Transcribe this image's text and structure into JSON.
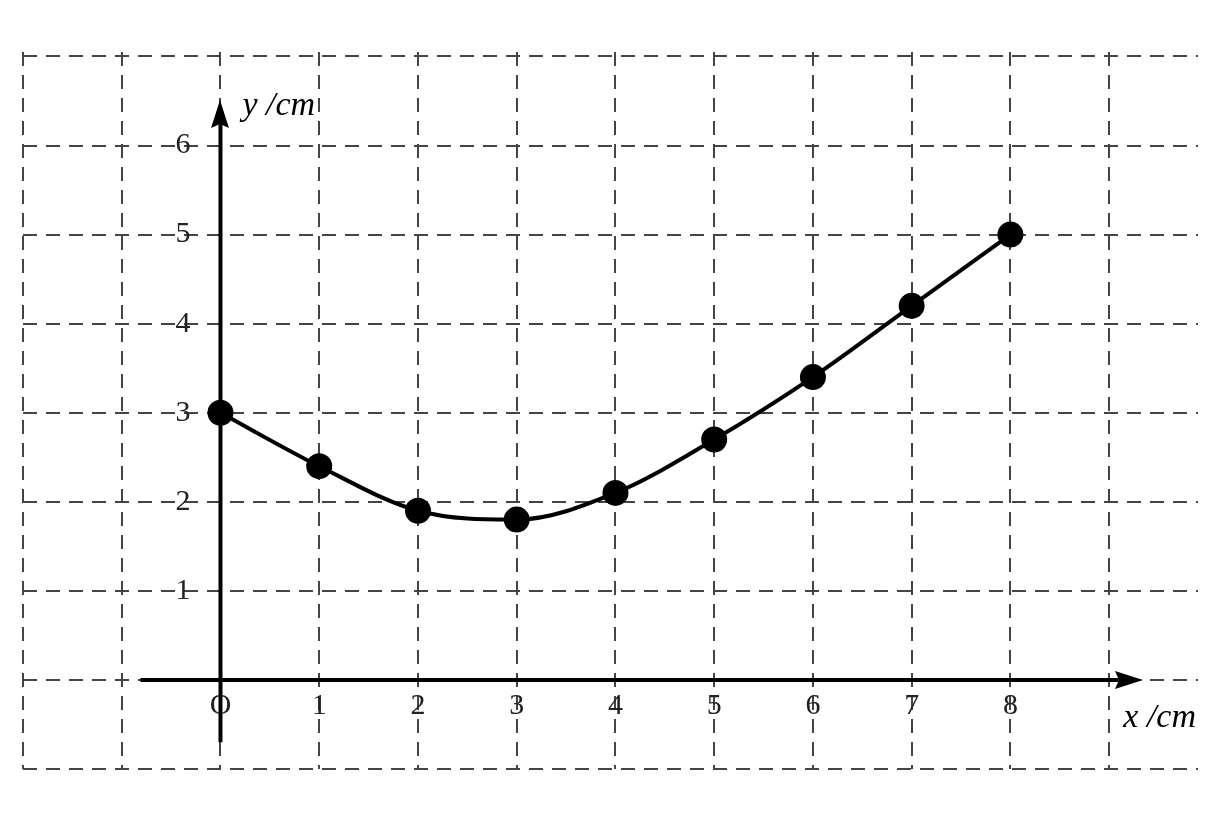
{
  "chart_data": {
    "type": "line",
    "xlabel": "x /cm",
    "ylabel": "y /cm",
    "x": [
      0,
      1,
      2,
      3,
      4,
      5,
      6,
      7,
      8
    ],
    "series": [
      {
        "color": "#000000",
        "values": [
          3.0,
          2.4,
          1.9,
          1.8,
          2.1,
          2.7,
          3.4,
          4.2,
          5.0
        ]
      }
    ],
    "xlim": [
      -2,
      9.9
    ],
    "ylim": [
      -1,
      7.05
    ],
    "xticks": [
      {
        "value": -2,
        "label": null
      },
      {
        "value": -1,
        "label": null
      },
      {
        "value": 0,
        "label": "O"
      },
      1,
      2,
      3,
      4,
      5,
      6,
      7,
      8,
      {
        "value": 9,
        "label": null
      }
    ],
    "yticks": [
      {
        "value": -1,
        "label": null
      },
      {
        "value": 0,
        "label": null
      },
      1,
      2,
      3,
      4,
      5,
      6,
      {
        "value": 7,
        "label": null
      }
    ],
    "grid": true,
    "marker": "circle",
    "legend": false
  }
}
